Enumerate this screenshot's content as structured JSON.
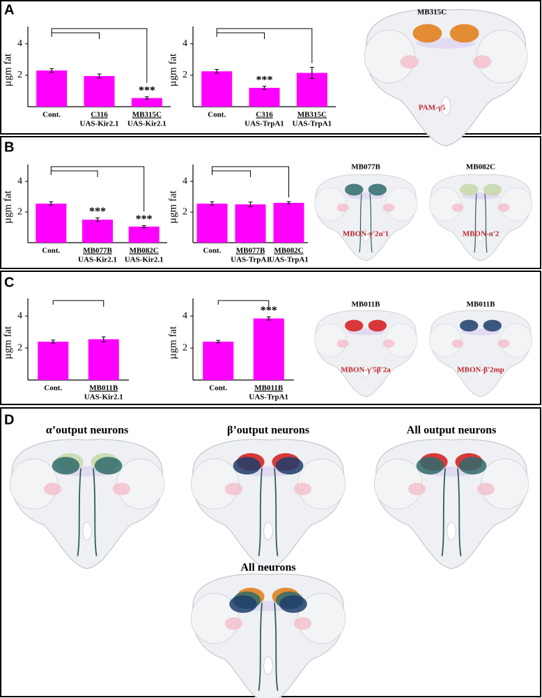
{
  "panels": [
    {
      "letter": "A",
      "images": [
        {
          "title": "MB315C",
          "label": "PAM-γ5"
        }
      ]
    },
    {
      "letter": "B",
      "images": [
        {
          "title": "MB077B",
          "label": "MBON-γ'2α'1"
        },
        {
          "title": "MB082C",
          "label": "MBON-α'2"
        }
      ]
    },
    {
      "letter": "C",
      "images": [
        {
          "title": "MB011B",
          "label": "MBON-γ'5β'2a"
        },
        {
          "title": "MB011B",
          "label": "MBON-β'2mp"
        }
      ]
    },
    {
      "letter": "D",
      "images": [
        {
          "title": "α’output neurons"
        },
        {
          "title": "β’output neurons"
        },
        {
          "title": "All output neurons"
        },
        {
          "title": "All neurons"
        }
      ]
    }
  ],
  "chart_data": [
    {
      "type": "bar",
      "y_label": "µgm fat",
      "color": "#ff00ff",
      "categories": [
        "Cont.",
        "C316",
        "MB315C"
      ],
      "sublabels": [
        null,
        "UAS-Kir2.1",
        "UAS-Kir2.1"
      ],
      "values": [
        2.3,
        1.95,
        0.55
      ],
      "errors": [
        0.12,
        0.13,
        0.08
      ],
      "value_annotations": [
        null,
        null,
        "***"
      ],
      "ylim": [
        0,
        5.1
      ],
      "yticks": [
        2,
        4
      ]
    },
    {
      "type": "bar",
      "y_label": "µgm fat",
      "color": "#ff00ff",
      "categories": [
        "Cont.",
        "C316",
        "MB315C"
      ],
      "sublabels": [
        null,
        "UAS-TrpA1",
        "UAS-TrpA1"
      ],
      "values": [
        2.25,
        1.2,
        2.15
      ],
      "errors": [
        0.12,
        0.1,
        0.35
      ],
      "value_annotations": [
        null,
        "***",
        null
      ],
      "ylim": [
        0,
        5.1
      ],
      "yticks": [
        2,
        4
      ]
    },
    {
      "type": "bar",
      "y_label": "µgm fat",
      "color": "#ff00ff",
      "categories": [
        "Cont.",
        "MB077B",
        "MB082C"
      ],
      "sublabels": [
        null,
        "UAS-Kir2.1",
        "UAS-Kir2.1"
      ],
      "values": [
        2.55,
        1.5,
        1.05
      ],
      "errors": [
        0.12,
        0.12,
        0.07
      ],
      "value_annotations": [
        null,
        "***",
        "***"
      ],
      "ylim": [
        0,
        5.1
      ],
      "yticks": [
        2,
        4
      ]
    },
    {
      "type": "bar",
      "y_label": "µgm fat",
      "color": "#ff00ff",
      "categories": [
        "Cont.",
        "MB077B",
        "MB082C"
      ],
      "sublabels": [
        null,
        "UAS-TrpA1",
        "UAS-TrpA1"
      ],
      "values": [
        2.55,
        2.5,
        2.6
      ],
      "errors": [
        0.12,
        0.15,
        0.08
      ],
      "value_annotations": [
        null,
        null,
        null
      ],
      "ylim": [
        0,
        5.1
      ],
      "yticks": [
        2,
        4
      ]
    },
    {
      "type": "bar",
      "y_label": "µgm fat",
      "color": "#ff00ff",
      "categories": [
        "Cont.",
        "MB011B"
      ],
      "sublabels": [
        null,
        "UAS-Kir2.1"
      ],
      "values": [
        2.4,
        2.55
      ],
      "errors": [
        0.1,
        0.15
      ],
      "value_annotations": [
        null,
        null
      ],
      "ylim": [
        0,
        5.1
      ],
      "yticks": [
        2,
        4
      ]
    },
    {
      "type": "bar",
      "y_label": "µgm fat",
      "color": "#ff00ff",
      "categories": [
        "Cont.",
        "MB011B"
      ],
      "sublabels": [
        null,
        "UAS-TrpA1"
      ],
      "values": [
        2.4,
        3.85
      ],
      "errors": [
        0.08,
        0.1
      ],
      "value_annotations": [
        null,
        "***"
      ],
      "ylim": [
        0,
        5.1
      ],
      "yticks": [
        2,
        4
      ]
    }
  ]
}
